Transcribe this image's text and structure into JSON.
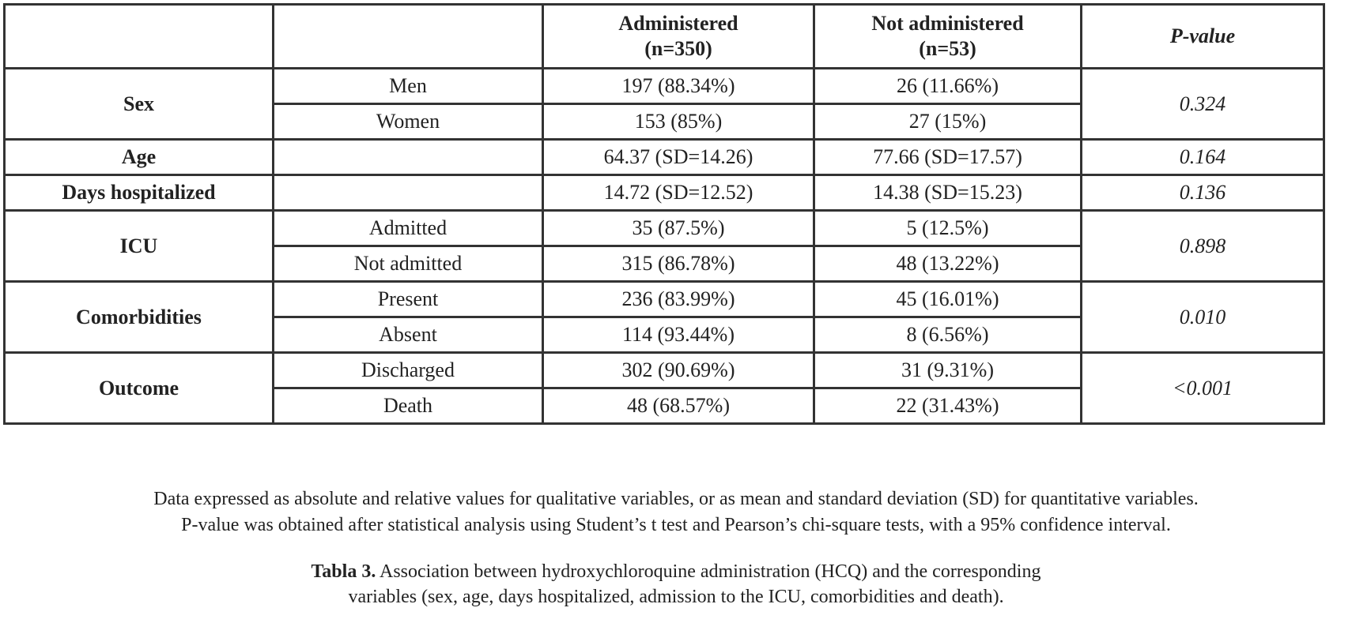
{
  "table": {
    "header": {
      "administered_line1": "Administered",
      "administered_line2": "(n=350)",
      "not_administered_line1": "Not administered",
      "not_administered_line2": "(n=53)",
      "pvalue": "P-value"
    },
    "sex": {
      "label": "Sex",
      "pvalue": "0.324",
      "rows": [
        {
          "sub": "Men",
          "administered": "197 (88.34%)",
          "not_administered": "26 (11.66%)"
        },
        {
          "sub": "Women",
          "administered": "153 (85%)",
          "not_administered": "27 (15%)"
        }
      ]
    },
    "age": {
      "label": "Age",
      "administered": "64.37 (SD=14.26)",
      "not_administered": "77.66 (SD=17.57)",
      "pvalue": "0.164"
    },
    "days": {
      "label": "Days hospitalized",
      "administered": "14.72 (SD=12.52)",
      "not_administered": "14.38 (SD=15.23)",
      "pvalue": "0.136"
    },
    "icu": {
      "label": "ICU",
      "pvalue": "0.898",
      "rows": [
        {
          "sub": "Admitted",
          "administered": "35 (87.5%)",
          "not_administered": "5 (12.5%)"
        },
        {
          "sub": "Not admitted",
          "administered": "315 (86.78%)",
          "not_administered": "48 (13.22%)"
        }
      ]
    },
    "comorbidities": {
      "label": "Comorbidities",
      "pvalue": "0.010",
      "rows": [
        {
          "sub": "Present",
          "administered": "236 (83.99%)",
          "not_administered": "45 (16.01%)"
        },
        {
          "sub": "Absent",
          "administered": "114 (93.44%)",
          "not_administered": "8 (6.56%)"
        }
      ]
    },
    "outcome": {
      "label": "Outcome",
      "pvalue": "<0.001",
      "rows": [
        {
          "sub": "Discharged",
          "administered": "302 (90.69%)",
          "not_administered": "31 (9.31%)"
        },
        {
          "sub": "Death",
          "administered": "48 (68.57%)",
          "not_administered": "22 (31.43%)"
        }
      ]
    }
  },
  "notes": {
    "line1": "Data expressed as absolute and relative values for qualitative variables, or as mean and standard deviation (SD) for quantitative variables.",
    "line2": "P-value was obtained after statistical analysis using Student’s t test and Pearson’s chi-square tests, with a 95% confidence interval."
  },
  "caption": {
    "label": "Tabla 3.",
    "line1_text": " Association between hydroxychloroquine administration (HCQ) and the corresponding",
    "line2_text": "variables (sex, age, days hospitalized, admission to the ICU, comorbidities and death)."
  }
}
